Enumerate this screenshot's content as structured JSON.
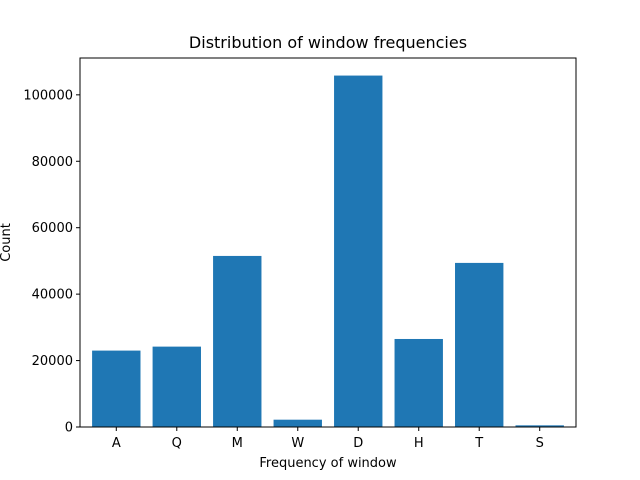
{
  "chart_data": {
    "type": "bar",
    "title": "Distribution of window frequencies",
    "xlabel": "Frequency of window",
    "ylabel": "Count",
    "categories": [
      "A",
      "Q",
      "M",
      "W",
      "D",
      "H",
      "T",
      "S"
    ],
    "values": [
      23000,
      24200,
      51500,
      2200,
      105800,
      26500,
      49400,
      500
    ],
    "ylim": [
      0,
      111090
    ],
    "yticks": [
      0,
      20000,
      40000,
      60000,
      80000,
      100000
    ],
    "ytick_labels": [
      "0",
      "20000",
      "40000",
      "60000",
      "80000",
      "100000"
    ],
    "bar_color": "#1f77b4",
    "grid": false,
    "legend": false
  }
}
